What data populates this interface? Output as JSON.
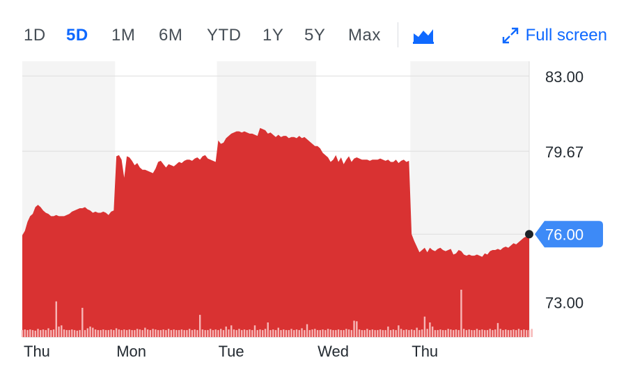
{
  "range_tabs": [
    {
      "label": "1D",
      "active": false
    },
    {
      "label": "5D",
      "active": true
    },
    {
      "label": "1M",
      "active": false
    },
    {
      "label": "6M",
      "active": false
    },
    {
      "label": "YTD",
      "active": false
    },
    {
      "label": "1Y",
      "active": false
    },
    {
      "label": "5Y",
      "active": false
    },
    {
      "label": "Max",
      "active": false
    }
  ],
  "chart_type_icon": "mountain-chart-icon",
  "fullscreen": {
    "label": "Full screen",
    "icon": "expand-arrows-icon"
  },
  "colors": {
    "area": "#d93232",
    "accent": "#0f69ff",
    "current_badge": "#3d8af7",
    "shade": "#f4f4f4",
    "volume": "#f7b6b6"
  },
  "chart_data": {
    "type": "area",
    "title": "",
    "xlabel": "",
    "ylabel": "",
    "ylim": [
      71.45,
      83.65
    ],
    "y_ticks": [
      {
        "label": "83.00",
        "value": 83.0
      },
      {
        "label": "79.67",
        "value": 79.67
      },
      {
        "label": "76.00",
        "value": 76.0
      },
      {
        "label": "73.00",
        "value": 73.0
      }
    ],
    "day_labels": [
      "Thu",
      "Mon",
      "Tue",
      "Wed",
      "Thu"
    ],
    "current_value": "76.00",
    "grid": true,
    "series": [
      {
        "values": [
          75.95,
          76.15,
          76.55,
          76.8,
          76.9,
          77.2,
          77.3,
          77.2,
          77.05,
          76.95,
          76.9,
          76.8,
          76.8,
          76.85,
          76.8,
          76.8,
          76.8,
          76.85,
          76.9,
          77.0,
          77.05,
          77.1,
          77.15,
          77.15,
          77.2,
          77.1,
          77.05,
          76.95,
          77.0,
          76.95,
          76.95,
          77.0,
          76.95,
          76.85,
          77.0,
          77.05,
          79.45,
          79.5,
          79.3,
          78.5,
          79.45,
          79.4,
          79.25,
          79.05,
          79.15,
          78.95,
          78.85,
          78.85,
          78.8,
          78.75,
          78.7,
          78.9,
          79.2,
          79.25,
          79.1,
          78.95,
          79.1,
          79.05,
          79.0,
          79.1,
          79.2,
          79.15,
          79.25,
          79.3,
          79.3,
          79.25,
          79.35,
          79.4,
          79.3,
          79.45,
          79.5,
          79.35,
          79.3,
          79.25,
          79.2,
          80.15,
          80.0,
          80.05,
          80.25,
          80.35,
          80.45,
          80.5,
          80.55,
          80.55,
          80.5,
          80.55,
          80.5,
          80.45,
          80.45,
          80.4,
          80.35,
          80.7,
          80.65,
          80.6,
          80.45,
          80.5,
          80.4,
          80.3,
          80.4,
          80.3,
          80.35,
          80.35,
          80.25,
          80.3,
          80.3,
          80.25,
          80.35,
          80.25,
          80.3,
          80.2,
          80.1,
          80.0,
          79.9,
          79.9,
          79.8,
          79.6,
          79.5,
          79.4,
          79.2,
          79.3,
          79.5,
          79.2,
          79.4,
          79.1,
          79.3,
          79.45,
          79.2,
          79.35,
          79.4,
          79.35,
          79.3,
          79.3,
          79.3,
          79.25,
          79.3,
          79.3,
          79.3,
          79.35,
          79.3,
          79.25,
          79.3,
          79.2,
          79.2,
          79.3,
          79.15,
          79.25,
          79.3,
          79.2,
          79.25,
          76.0,
          75.7,
          75.45,
          75.2,
          75.3,
          75.4,
          75.2,
          75.4,
          75.3,
          75.25,
          75.35,
          75.4,
          75.3,
          75.25,
          75.3,
          75.35,
          75.1,
          75.15,
          75.3,
          75.25,
          75.1,
          75.05,
          75.1,
          75.05,
          75.05,
          75.1,
          75.05,
          75.0,
          75.15,
          75.1,
          75.25,
          75.3,
          75.3,
          75.35,
          75.3,
          75.4,
          75.45,
          75.4,
          75.5,
          75.6,
          75.55,
          75.65,
          75.75,
          75.85,
          75.9,
          76.0
        ]
      }
    ],
    "session_lengths": [
      36,
      39,
      38,
      36,
      46
    ],
    "volume": [
      0.12,
      0.13,
      0.12,
      0.13,
      0.12,
      0.11,
      0.14,
      0.12,
      0.13,
      0.12,
      0.15,
      0.12,
      0.13,
      0.61,
      0.18,
      0.2,
      0.13,
      0.12,
      0.12,
      0.13,
      0.12,
      0.11,
      0.12,
      0.5,
      0.12,
      0.15,
      0.18,
      0.16,
      0.13,
      0.12,
      0.12,
      0.13,
      0.12,
      0.12,
      0.13,
      0.12,
      0.15,
      0.13,
      0.12,
      0.13,
      0.12,
      0.13,
      0.12,
      0.12,
      0.14,
      0.13,
      0.12,
      0.16,
      0.13,
      0.12,
      0.14,
      0.13,
      0.12,
      0.12,
      0.13,
      0.12,
      0.14,
      0.12,
      0.13,
      0.12,
      0.12,
      0.13,
      0.12,
      0.12,
      0.14,
      0.12,
      0.13,
      0.12,
      0.38,
      0.13,
      0.12,
      0.12,
      0.14,
      0.12,
      0.13,
      0.12,
      0.14,
      0.12,
      0.18,
      0.13,
      0.2,
      0.13,
      0.12,
      0.14,
      0.12,
      0.13,
      0.12,
      0.13,
      0.12,
      0.2,
      0.12,
      0.13,
      0.12,
      0.14,
      0.25,
      0.12,
      0.13,
      0.12,
      0.16,
      0.12,
      0.13,
      0.12,
      0.12,
      0.14,
      0.12,
      0.13,
      0.12,
      0.15,
      0.12,
      0.22,
      0.12,
      0.13,
      0.14,
      0.12,
      0.12,
      0.13,
      0.12,
      0.14,
      0.13,
      0.12,
      0.12,
      0.13,
      0.12,
      0.12,
      0.14,
      0.13,
      0.12,
      0.28,
      0.27,
      0.13,
      0.12,
      0.12,
      0.14,
      0.12,
      0.13,
      0.12,
      0.12,
      0.13,
      0.12,
      0.12,
      0.18,
      0.12,
      0.13,
      0.12,
      0.2,
      0.14,
      0.12,
      0.13,
      0.12,
      0.13,
      0.12,
      0.16,
      0.12,
      0.13,
      0.35,
      0.14,
      0.25,
      0.18,
      0.12,
      0.12,
      0.13,
      0.12,
      0.12,
      0.14,
      0.13,
      0.12,
      0.13,
      0.12,
      0.81,
      0.14,
      0.12,
      0.13,
      0.12,
      0.12,
      0.14,
      0.12,
      0.13,
      0.12,
      0.12,
      0.14,
      0.12,
      0.13,
      0.24,
      0.14,
      0.12,
      0.13,
      0.12,
      0.12,
      0.13,
      0.12,
      0.14,
      0.12,
      0.13,
      0.12,
      0.12,
      0.14
    ]
  }
}
